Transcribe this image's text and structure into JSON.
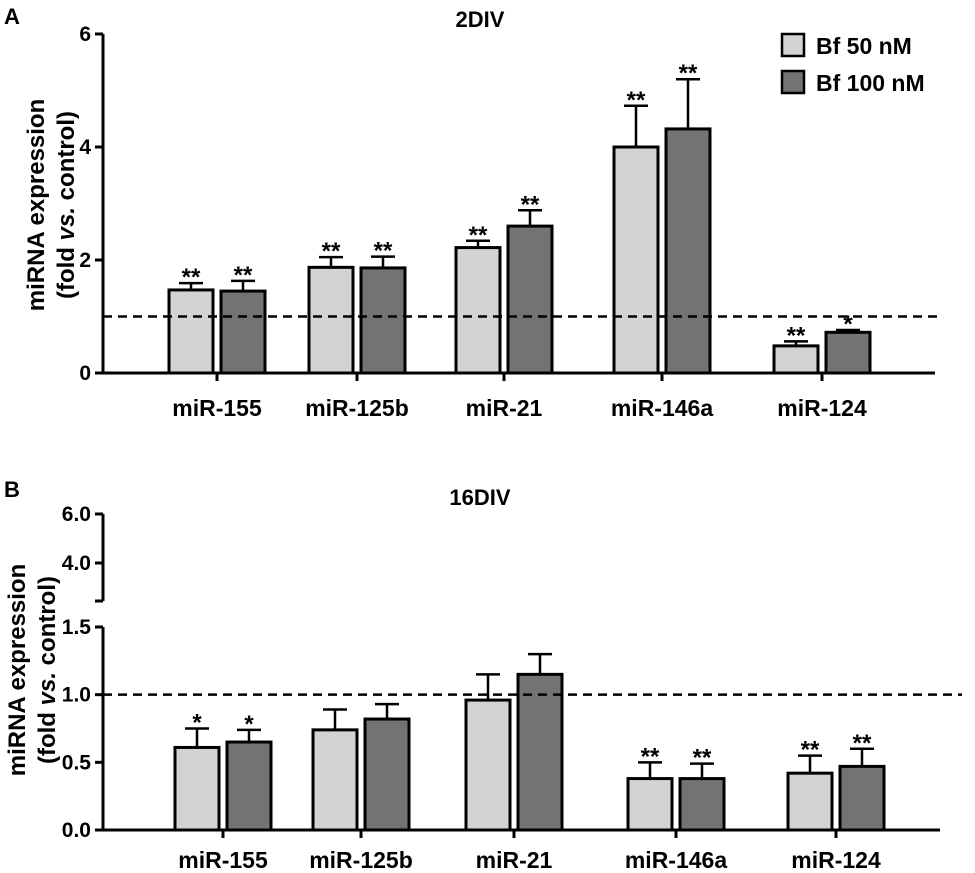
{
  "chart_data": [
    {
      "panel_label": "A",
      "type": "bar",
      "title": "2DIV",
      "ylabel_line1": "miRNA expression",
      "ylabel_line2_pre": "(fold ",
      "ylabel_line2_em": "vs.",
      "ylabel_line2_post": " control)",
      "ylim": [
        0,
        6
      ],
      "yticks": [
        "0",
        "2",
        "4",
        "6"
      ],
      "reference_line": 1,
      "categories": [
        "miR-155",
        "miR-125b",
        "miR-21",
        "miR-146a",
        "miR-124"
      ],
      "series": [
        {
          "name": "Bf 50 nM",
          "color": "#d3d3d3",
          "values": [
            1.47,
            1.87,
            2.22,
            4.0,
            0.48
          ],
          "errors": [
            0.12,
            0.18,
            0.12,
            0.73,
            0.08
          ],
          "significance": [
            "**",
            "**",
            "**",
            "**",
            "**"
          ]
        },
        {
          "name": "Bf 100 nM",
          "color": "#737373",
          "values": [
            1.45,
            1.86,
            2.6,
            4.32,
            0.72
          ],
          "errors": [
            0.18,
            0.2,
            0.28,
            0.88,
            0.04
          ],
          "significance": [
            "**",
            "**",
            "**",
            "**",
            "*"
          ]
        }
      ],
      "legend": [
        {
          "label": "Bf 50 nM",
          "color": "#d3d3d3"
        },
        {
          "label": "Bf 100 nM",
          "color": "#737373"
        }
      ]
    },
    {
      "panel_label": "B",
      "type": "bar",
      "title": "16DIV",
      "ylabel_line1": "miRNA expression",
      "ylabel_line2_pre": "(fold ",
      "ylabel_line2_em": "vs.",
      "ylabel_line2_post": " control)",
      "ylim": [
        0,
        1.5
      ],
      "ylim_upper_segment": [
        4.0,
        6.0
      ],
      "yticks": [
        "0.0",
        "0.5",
        "1.0",
        "1.5"
      ],
      "yticks_upper": [
        "4.0",
        "6.0"
      ],
      "reference_line": 1,
      "categories": [
        "miR-155",
        "miR-125b",
        "miR-21",
        "miR-146a",
        "miR-124"
      ],
      "series": [
        {
          "name": "Bf 50 nM",
          "color": "#d3d3d3",
          "values": [
            0.61,
            0.74,
            0.96,
            0.38,
            0.42
          ],
          "errors": [
            0.14,
            0.15,
            0.19,
            0.12,
            0.13
          ],
          "significance": [
            "*",
            "",
            "",
            "**",
            "**"
          ]
        },
        {
          "name": "Bf 100 nM",
          "color": "#737373",
          "values": [
            0.65,
            0.82,
            1.15,
            0.38,
            0.47
          ],
          "errors": [
            0.09,
            0.11,
            0.15,
            0.11,
            0.13
          ],
          "significance": [
            "*",
            "",
            "",
            "**",
            "**"
          ]
        }
      ]
    }
  ]
}
